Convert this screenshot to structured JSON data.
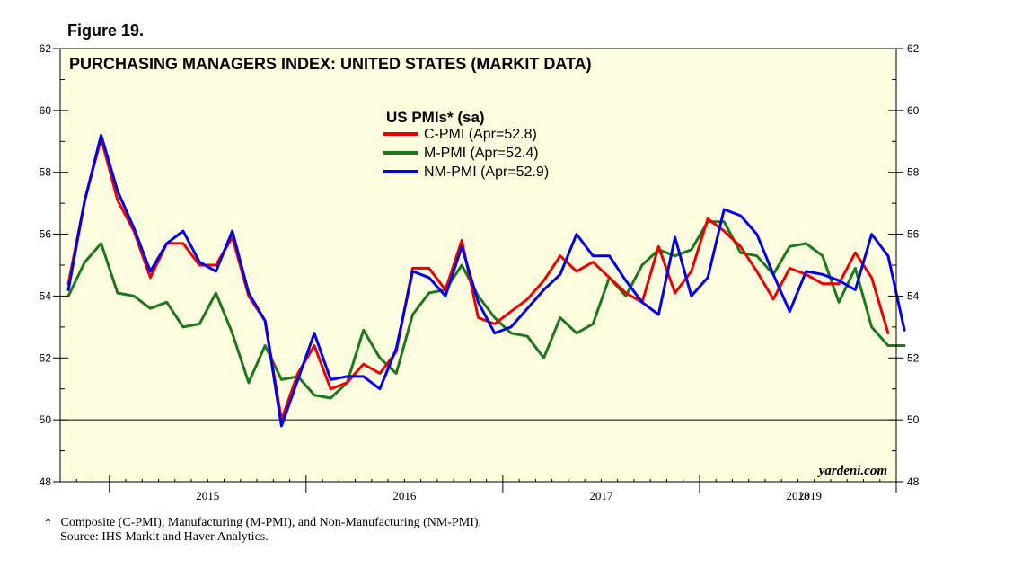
{
  "figure_label": "Figure 19.",
  "chart_data": {
    "type": "line",
    "title": "PURCHASING MANAGERS INDEX: UNITED STATES (MARKIT DATA)",
    "legend_title": "US PMIs* (sa)",
    "ylim": [
      48,
      62
    ],
    "yticks": [
      48,
      50,
      52,
      54,
      56,
      58,
      60,
      62
    ],
    "x_tick_labels": [
      "2015",
      "2016",
      "2017",
      "2018",
      "2019"
    ],
    "reference_line": 50,
    "watermark": "yardeni.com",
    "months": [
      "2014-10",
      "2014-11",
      "2014-12",
      "2015-01",
      "2015-02",
      "2015-03",
      "2015-04",
      "2015-05",
      "2015-06",
      "2015-07",
      "2015-08",
      "2015-09",
      "2015-10",
      "2015-11",
      "2015-12",
      "2016-01",
      "2016-02",
      "2016-03",
      "2016-04",
      "2016-05",
      "2016-06",
      "2016-07",
      "2016-08",
      "2016-09",
      "2016-10",
      "2016-11",
      "2016-12",
      "2017-01",
      "2017-02",
      "2017-03",
      "2017-04",
      "2017-05",
      "2017-06",
      "2017-07",
      "2017-08",
      "2017-09",
      "2017-10",
      "2017-11",
      "2017-12",
      "2018-01",
      "2018-02",
      "2018-03",
      "2018-04",
      "2018-05",
      "2018-06",
      "2018-07",
      "2018-08",
      "2018-09",
      "2018-10",
      "2018-11",
      "2018-12",
      "2019-01",
      "2019-02",
      "2019-03",
      "2019-04"
    ],
    "series": [
      {
        "name": "C-PMI (Apr=52.8)",
        "color": "#ee0000",
        "values": [
          54.4,
          57.1,
          59.1,
          57.1,
          56.1,
          54.6,
          55.7,
          55.7,
          55.0,
          55.0,
          55.9,
          54.0,
          53.2,
          50.0,
          51.5,
          52.4,
          51.0,
          51.2,
          51.8,
          51.5,
          52.2,
          54.9,
          54.9,
          54.2,
          55.8,
          53.3,
          53.1,
          53.5,
          53.9,
          54.5,
          55.3,
          54.8,
          55.1,
          54.6,
          54.1,
          53.8,
          55.6,
          54.1,
          54.8,
          56.5,
          56.1,
          55.6,
          54.8,
          53.9,
          54.9,
          54.7,
          54.4,
          54.4,
          55.4,
          54.6,
          52.8,
          null,
          null,
          null,
          null
        ]
      },
      {
        "name": "M-PMI (Apr=52.4)",
        "color": "#1a7a1a",
        "values": [
          54.0,
          55.1,
          55.7,
          54.1,
          54.0,
          53.6,
          53.8,
          53.0,
          53.1,
          54.1,
          52.8,
          51.2,
          52.4,
          51.3,
          51.4,
          50.8,
          50.7,
          51.2,
          52.9,
          52.0,
          51.5,
          53.4,
          54.1,
          54.2,
          55.0,
          54.0,
          53.3,
          52.8,
          52.7,
          52.0,
          53.3,
          52.8,
          53.1,
          54.6,
          54.0,
          55.0,
          55.5,
          55.3,
          55.5,
          56.4,
          56.4,
          55.4,
          55.3,
          54.7,
          55.6,
          55.7,
          55.3,
          53.8,
          54.9,
          53.0,
          52.4,
          52.4,
          null,
          null,
          null
        ]
      },
      {
        "name": "NM-PMI (Apr=52.9)",
        "color": "#0000ee",
        "values": [
          54.2,
          57.1,
          59.2,
          57.4,
          56.2,
          54.8,
          55.7,
          56.1,
          55.1,
          54.8,
          56.1,
          54.1,
          53.2,
          49.8,
          51.3,
          52.8,
          51.3,
          51.4,
          51.4,
          51.0,
          52.3,
          54.8,
          54.6,
          54.0,
          55.6,
          53.8,
          52.8,
          53.0,
          53.6,
          54.2,
          54.7,
          56.0,
          55.3,
          55.3,
          54.5,
          53.8,
          53.4,
          55.9,
          54.0,
          54.6,
          56.8,
          56.6,
          56.0,
          54.7,
          53.5,
          54.8,
          54.7,
          54.5,
          54.2,
          56.0,
          55.3,
          52.9,
          null,
          null,
          null
        ]
      }
    ]
  },
  "footnote": {
    "marker": "*",
    "line1": "Composite (C-PMI), Manufacturing (M-PMI), and Non-Manufacturing (NM-PMI).",
    "line2": "Source: IHS Markit and Haver Analytics."
  }
}
